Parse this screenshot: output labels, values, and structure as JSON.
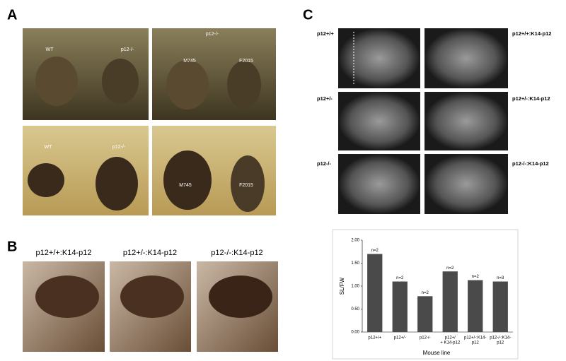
{
  "panel_labels": [
    "A",
    "B",
    "C"
  ],
  "panel_a": {
    "photos": [
      {
        "labels": [
          "WT",
          "p12-/-"
        ]
      },
      {
        "labels": [
          "p12-/-",
          "M745",
          "F2015"
        ]
      },
      {
        "labels": [
          "WT",
          "p12-/-"
        ]
      },
      {
        "labels": [
          "M745",
          "F2015"
        ]
      }
    ]
  },
  "panel_b": {
    "captions": [
      "p12+/+:K14-p12",
      "p12+/-:K14-p12",
      "p12-/-:K14-p12"
    ]
  },
  "panel_c": {
    "xray_labels": [
      "p12+/+",
      "p12+/+:K14-p12",
      "p12+/-",
      "p12+/-:K14-p12",
      "p12-/-",
      "p12-/-:K14-p12"
    ]
  },
  "chart_data": {
    "type": "bar",
    "ylabel": "SL/FW",
    "xlabel": "Mouse line",
    "categories": [
      [
        "p12+/+"
      ],
      [
        "p12+/-"
      ],
      [
        "p12-/-"
      ],
      [
        "p12+/",
        "+ K14-p12"
      ],
      [
        "p12+/-:K14-",
        "p12"
      ],
      [
        "p12-/-:K14-",
        "p12"
      ]
    ],
    "values": [
      1.7,
      1.1,
      0.78,
      1.32,
      1.13,
      1.1
    ],
    "n_labels": [
      "n=2",
      "n=2",
      "n=2",
      "n=2",
      "n=2",
      "n=3"
    ],
    "color": "#4a4a4a",
    "ylim": [
      0,
      2
    ],
    "yticks": [
      {
        "value": 0,
        "label": "0.00"
      },
      {
        "value": 0.5,
        "label": "0.50"
      },
      {
        "value": 1,
        "label": "1.00"
      },
      {
        "value": 1.5,
        "label": "1.50"
      },
      {
        "value": 2,
        "label": "2.00"
      }
    ]
  }
}
